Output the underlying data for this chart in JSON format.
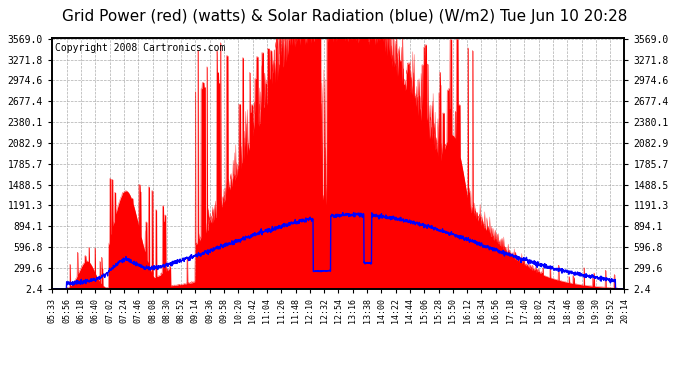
{
  "title": "Grid Power (red) (watts) & Solar Radiation (blue) (W/m2) Tue Jun 10 20:28",
  "copyright": "Copyright 2008 Cartronics.com",
  "yticks": [
    2.4,
    299.6,
    596.8,
    894.1,
    1191.3,
    1488.5,
    1785.7,
    2082.9,
    2380.1,
    2677.4,
    2974.6,
    3271.8,
    3569.0
  ],
  "ymin": 2.4,
  "ymax": 3569.0,
  "bg_color": "#ffffff",
  "plot_bg_color": "#ffffff",
  "grid_color": "#999999",
  "red_color": "#ff0000",
  "blue_color": "#0000ff",
  "title_fontsize": 11,
  "copyright_fontsize": 7,
  "tick_fontsize": 7,
  "xtick_fontsize": 6
}
